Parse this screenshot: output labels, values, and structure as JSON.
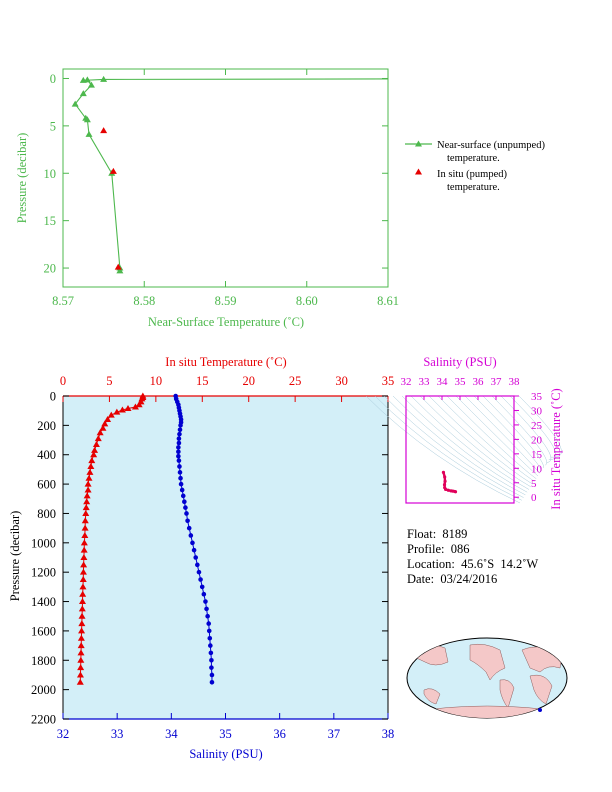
{
  "colors": {
    "near_surface": "#4db84d",
    "insitu_red": "#e60000",
    "salinity_blue": "#0000d0",
    "panel_fill": "#d3eff8",
    "magenta": "#d400d4",
    "axis_dark": "#000000"
  },
  "chart_data": [
    {
      "type": "line",
      "xlabel": "Near-Surface Temperature (˚C)",
      "ylabel": "Pressure (decibar)",
      "xlim": [
        8.57,
        8.61
      ],
      "ylim": [
        22,
        -1
      ],
      "x_ticks": [
        "8.57",
        "8.58",
        "8.59",
        "8.60",
        "8.61"
      ],
      "y_ticks": [
        "0",
        "5",
        "10",
        "15",
        "20"
      ],
      "legend": [
        {
          "line1": "Near-surface (unpumped)",
          "line2": "temperature."
        },
        {
          "line1": "In situ (pumped)",
          "line2": "temperature."
        }
      ],
      "series": [
        {
          "marker": "triangle-line",
          "points": [
            [
              8.611,
              0.05
            ],
            [
              8.575,
              0.1
            ],
            [
              8.5725,
              0.2
            ],
            [
              8.573,
              0.15
            ],
            [
              8.5735,
              0.7
            ],
            [
              8.5725,
              1.6
            ],
            [
              8.5715,
              2.7
            ],
            [
              8.5728,
              4.2
            ],
            [
              8.573,
              4.35
            ],
            [
              8.5732,
              5.9
            ],
            [
              8.576,
              10.0
            ],
            [
              8.577,
              20.0
            ],
            [
              8.577,
              20.3
            ]
          ]
        },
        {
          "marker": "triangle",
          "points": [
            [
              8.575,
              5.5
            ],
            [
              8.5762,
              9.8
            ],
            [
              8.5768,
              19.9
            ]
          ]
        }
      ]
    },
    {
      "type": "scatter",
      "title": "In situ Temperature (˚C)",
      "xlabel": "Salinity (PSU)",
      "ylabel": "Pressure (decibar)",
      "temp_xlim": [
        0,
        35
      ],
      "sal_xlim": [
        32,
        38
      ],
      "ylim": [
        2200,
        0
      ],
      "temp_ticks": [
        "0",
        "5",
        "10",
        "15",
        "20",
        "25",
        "30",
        "35"
      ],
      "sal_ticks": [
        "32",
        "33",
        "34",
        "35",
        "36",
        "37",
        "38"
      ],
      "y_ticks": [
        "0",
        "200",
        "400",
        "600",
        "800",
        "1000",
        "1200",
        "1400",
        "1600",
        "1800",
        "2000",
        "2200"
      ],
      "series": [
        {
          "axis": "temperature",
          "points": [
            [
              8.6,
              0
            ],
            [
              8.6,
              10
            ],
            [
              8.5,
              20
            ],
            [
              8.4,
              40
            ],
            [
              8.2,
              60
            ],
            [
              7.8,
              75
            ],
            [
              7.0,
              85
            ],
            [
              6.4,
              95
            ],
            [
              5.8,
              110
            ],
            [
              5.2,
              130
            ],
            [
              4.8,
              160
            ],
            [
              4.5,
              190
            ],
            [
              4.3,
              220
            ],
            [
              4.0,
              250
            ],
            [
              3.8,
              290
            ],
            [
              3.6,
              330
            ],
            [
              3.4,
              370
            ],
            [
              3.3,
              400
            ],
            [
              3.1,
              440
            ],
            [
              3.0,
              480
            ],
            [
              2.9,
              520
            ],
            [
              2.8,
              560
            ],
            [
              2.7,
              600
            ],
            [
              2.7,
              640
            ],
            [
              2.6,
              680
            ],
            [
              2.55,
              720
            ],
            [
              2.5,
              760
            ],
            [
              2.45,
              800
            ],
            [
              2.4,
              850
            ],
            [
              2.38,
              900
            ],
            [
              2.35,
              950
            ],
            [
              2.3,
              1000
            ],
            [
              2.28,
              1050
            ],
            [
              2.25,
              1100
            ],
            [
              2.22,
              1150
            ],
            [
              2.2,
              1200
            ],
            [
              2.18,
              1250
            ],
            [
              2.15,
              1300
            ],
            [
              2.12,
              1350
            ],
            [
              2.1,
              1400
            ],
            [
              2.08,
              1450
            ],
            [
              2.05,
              1500
            ],
            [
              2.03,
              1550
            ],
            [
              2.0,
              1600
            ],
            [
              1.98,
              1650
            ],
            [
              1.96,
              1700
            ],
            [
              1.94,
              1750
            ],
            [
              1.92,
              1800
            ],
            [
              1.9,
              1850
            ],
            [
              1.88,
              1900
            ],
            [
              1.86,
              1950
            ]
          ]
        },
        {
          "axis": "salinity",
          "points": [
            [
              34.08,
              0
            ],
            [
              34.09,
              20
            ],
            [
              34.11,
              40
            ],
            [
              34.13,
              60
            ],
            [
              34.14,
              80
            ],
            [
              34.15,
              100
            ],
            [
              34.16,
              120
            ],
            [
              34.17,
              140
            ],
            [
              34.18,
              160
            ],
            [
              34.18,
              180
            ],
            [
              34.17,
              200
            ],
            [
              34.16,
              230
            ],
            [
              34.15,
              260
            ],
            [
              34.14,
              290
            ],
            [
              34.14,
              320
            ],
            [
              34.13,
              350
            ],
            [
              34.13,
              380
            ],
            [
              34.13,
              410
            ],
            [
              34.14,
              440
            ],
            [
              34.15,
              480
            ],
            [
              34.16,
              520
            ],
            [
              34.17,
              560
            ],
            [
              34.18,
              600
            ],
            [
              34.2,
              640
            ],
            [
              34.22,
              680
            ],
            [
              34.24,
              720
            ],
            [
              34.26,
              760
            ],
            [
              34.28,
              800
            ],
            [
              34.3,
              850
            ],
            [
              34.33,
              900
            ],
            [
              34.36,
              950
            ],
            [
              34.39,
              1000
            ],
            [
              34.42,
              1050
            ],
            [
              34.45,
              1100
            ],
            [
              34.48,
              1150
            ],
            [
              34.51,
              1200
            ],
            [
              34.54,
              1250
            ],
            [
              34.57,
              1300
            ],
            [
              34.6,
              1350
            ],
            [
              34.63,
              1400
            ],
            [
              34.65,
              1450
            ],
            [
              34.67,
              1500
            ],
            [
              34.69,
              1550
            ],
            [
              34.7,
              1600
            ],
            [
              34.71,
              1650
            ],
            [
              34.72,
              1700
            ],
            [
              34.73,
              1750
            ],
            [
              34.74,
              1800
            ],
            [
              34.74,
              1850
            ],
            [
              34.75,
              1900
            ],
            [
              34.75,
              1950
            ]
          ]
        }
      ]
    },
    {
      "type": "scatter",
      "title": "Salinity (PSU)",
      "ylabel": "In situ Temperature (˚C)",
      "xlim": [
        32,
        38
      ],
      "ylim": [
        -2,
        35
      ],
      "x_ticks": [
        "32",
        "33",
        "34",
        "35",
        "36",
        "37",
        "38"
      ],
      "y_ticks": [
        "0",
        "5",
        "10",
        "15",
        "20",
        "25",
        "30",
        "35"
      ],
      "points": [
        [
          34.08,
          8.6
        ],
        [
          34.15,
          7.0
        ],
        [
          34.17,
          5.5
        ],
        [
          34.14,
          4.3
        ],
        [
          34.15,
          3.3
        ],
        [
          34.2,
          2.7
        ],
        [
          34.35,
          2.4
        ],
        [
          34.5,
          2.2
        ],
        [
          34.6,
          2.1
        ],
        [
          34.7,
          2.0
        ],
        [
          34.75,
          1.9
        ]
      ]
    }
  ],
  "float_info": {
    "float": "Float:  8189",
    "profile": "Profile:  086",
    "location": "Location:  45.6˚S  14.2˚W",
    "date": "Date:  03/24/2016"
  }
}
